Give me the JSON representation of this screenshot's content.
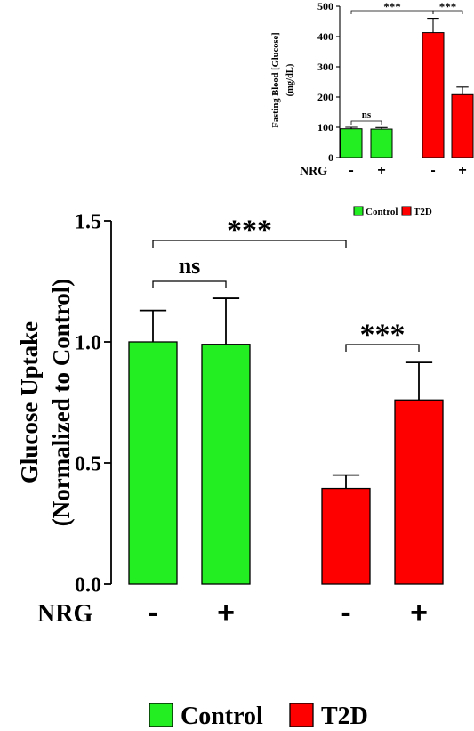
{
  "colors": {
    "control": "#22ee22",
    "t2d": "#ff0000",
    "axis": "#000000"
  },
  "chart_data": [
    {
      "type": "bar",
      "ylabel": "Fasting Blood [Glucose]",
      "ylabel2": "(mg/dL)",
      "ylim": [
        0,
        500
      ],
      "yticks": [
        "0",
        "100",
        "200",
        "300",
        "400",
        "500"
      ],
      "row_label": "NRG",
      "categories": [
        "-",
        "+",
        "-",
        "+"
      ],
      "values": [
        95,
        94,
        413,
        208
      ],
      "errors": [
        5,
        5,
        47,
        25
      ],
      "groups": [
        "control",
        "control",
        "t2d",
        "t2d"
      ],
      "annotations": [
        {
          "text": "ns",
          "from": 0,
          "to": 1
        },
        {
          "text": "***",
          "from": 0,
          "to": 2
        },
        {
          "text": "***",
          "from": 2,
          "to": 3
        }
      ],
      "legend": [
        {
          "label": "Control",
          "group": "control"
        },
        {
          "label": "T2D",
          "group": "t2d"
        }
      ]
    },
    {
      "type": "bar",
      "ylabel": "Glucose Uptake",
      "ylabel2": "(Normalized to Control)",
      "ylim": [
        0,
        1.5
      ],
      "yticks": [
        "0.0",
        "0.5",
        "1.0",
        "1.5"
      ],
      "row_label": "NRG",
      "categories": [
        "-",
        "+",
        "-",
        "+"
      ],
      "values": [
        1.0,
        0.99,
        0.395,
        0.76
      ],
      "errors": [
        0.13,
        0.19,
        0.055,
        0.155
      ],
      "groups": [
        "control",
        "control",
        "t2d",
        "t2d"
      ],
      "annotations": [
        {
          "text": "ns",
          "from": 0,
          "to": 1
        },
        {
          "text": "***",
          "from": 0,
          "to": 2
        },
        {
          "text": "***",
          "from": 2,
          "to": 3
        }
      ],
      "legend": [
        {
          "label": "Control",
          "group": "control"
        },
        {
          "label": "T2D",
          "group": "t2d"
        }
      ]
    }
  ]
}
